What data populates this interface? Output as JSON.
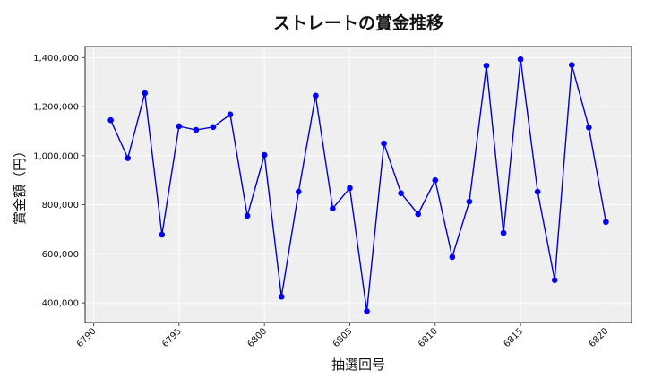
{
  "chart_data": {
    "type": "line",
    "title": "ストレートの賞金推移",
    "xlabel": "抽選回号",
    "ylabel": "賞金額（円）",
    "xlim": [
      6789.5,
      6821.5
    ],
    "ylim": [
      320000,
      1445000
    ],
    "xticks": [
      6790,
      6795,
      6800,
      6805,
      6810,
      6815,
      6820
    ],
    "xtick_labels": [
      "6790",
      "6795",
      "6800",
      "6805",
      "6810",
      "6815",
      "6820"
    ],
    "yticks": [
      400000,
      600000,
      800000,
      1000000,
      1200000,
      1400000
    ],
    "ytick_labels": [
      "400,000",
      "600,000",
      "800,000",
      "1,000,000",
      "1,200,000",
      "1,400,000"
    ],
    "grid": true,
    "colors": {
      "line": "#0000cc",
      "marker": "#0000ee",
      "plot_bg": "#efefef",
      "grid": "#ffffff"
    },
    "series": [
      {
        "x": [
          6791,
          6792,
          6793,
          6794,
          6795,
          6796,
          6797,
          6798,
          6799,
          6800,
          6801,
          6802,
          6803,
          6804,
          6805,
          6806,
          6807,
          6808,
          6809,
          6810,
          6811,
          6812,
          6813,
          6814,
          6815,
          6816,
          6817,
          6818,
          6819,
          6820
        ],
        "values": [
          1145000,
          990000,
          1255000,
          678000,
          1120000,
          1105000,
          1117000,
          1168000,
          755000,
          1003000,
          425000,
          853000,
          1245000,
          785000,
          868000,
          366000,
          1050000,
          847000,
          762000,
          900000,
          587000,
          813000,
          1367000,
          685000,
          1393000,
          853000,
          493000,
          1370000,
          1115000,
          730000
        ]
      }
    ]
  }
}
